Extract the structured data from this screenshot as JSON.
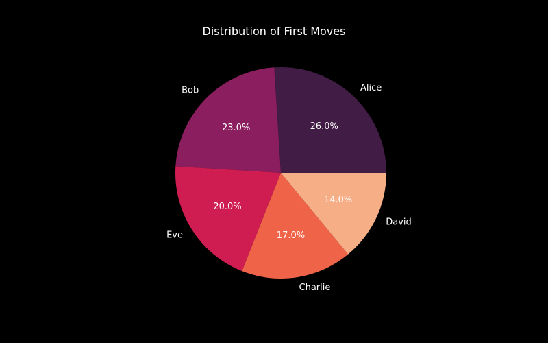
{
  "chart_data": {
    "type": "pie",
    "title": "Distribution of First Moves",
    "categories": [
      "Alice",
      "Bob",
      "Eve",
      "Charlie",
      "David"
    ],
    "values": [
      26.0,
      23.0,
      20.0,
      17.0,
      14.0
    ],
    "value_labels": [
      "26.0%",
      "23.0%",
      "20.0%",
      "17.0%",
      "14.0%"
    ],
    "colors": [
      "#411c44",
      "#8a1e5e",
      "#cf1d52",
      "#ef6448",
      "#f6ae87"
    ],
    "start_angle_deg": 0,
    "direction": "counterclockwise",
    "legend": "none"
  }
}
